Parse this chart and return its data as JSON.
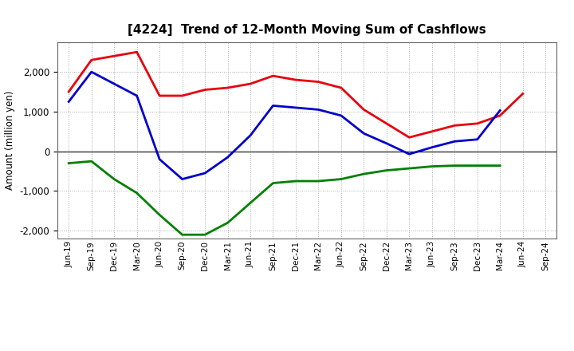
{
  "title": "[4224]  Trend of 12-Month Moving Sum of Cashflows",
  "ylabel": "Amount (million yen)",
  "x_labels": [
    "Jun-19",
    "Sep-19",
    "Dec-19",
    "Mar-20",
    "Jun-20",
    "Sep-20",
    "Dec-20",
    "Mar-21",
    "Jun-21",
    "Sep-21",
    "Dec-21",
    "Mar-22",
    "Jun-22",
    "Sep-22",
    "Dec-22",
    "Mar-23",
    "Jun-23",
    "Sep-23",
    "Dec-23",
    "Mar-24",
    "Jun-24",
    "Sep-24"
  ],
  "operating": [
    1500,
    2300,
    2400,
    2500,
    1400,
    1400,
    1550,
    1600,
    1700,
    1900,
    1800,
    1750,
    1600,
    1050,
    700,
    350,
    500,
    650,
    700,
    900,
    1450,
    null
  ],
  "investing": [
    -300,
    -250,
    -700,
    -1050,
    -1600,
    -2100,
    -2100,
    -1800,
    -1300,
    -800,
    -750,
    -750,
    -700,
    -570,
    -480,
    -430,
    -380,
    -360,
    -360,
    -360,
    null,
    null
  ],
  "free": [
    1250,
    2000,
    1700,
    1400,
    -200,
    -700,
    -550,
    -150,
    400,
    1150,
    1100,
    1050,
    900,
    450,
    200,
    -70,
    100,
    250,
    300,
    1030,
    null,
    null
  ],
  "operating_color": "#e8000d",
  "investing_color": "#008000",
  "free_color": "#0000cc",
  "background_color": "#ffffff",
  "grid_color": "#aaaaaa",
  "ylim": [
    -2200,
    2750
  ],
  "yticks": [
    -2000,
    -1000,
    0,
    1000,
    2000
  ]
}
